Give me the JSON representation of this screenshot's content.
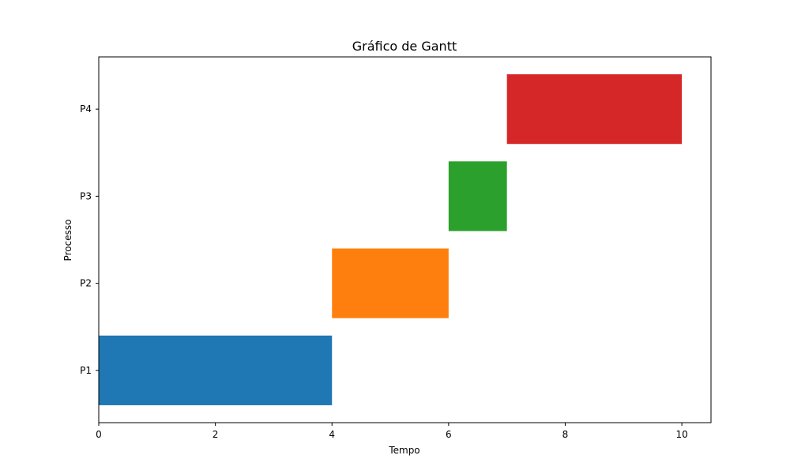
{
  "chart_data": {
    "type": "bar",
    "orientation": "horizontal",
    "title": "Gráfico de Gantt",
    "xlabel": "Tempo",
    "ylabel": "Processo",
    "xlim": [
      0,
      10.5
    ],
    "xticks": [
      0,
      2,
      4,
      6,
      8,
      10
    ],
    "categories": [
      "P1",
      "P2",
      "P3",
      "P4"
    ],
    "bars": [
      {
        "category": "P1",
        "start": 0,
        "end": 4,
        "color": "#1f77b4"
      },
      {
        "category": "P2",
        "start": 4,
        "end": 6,
        "color": "#ff7f0e"
      },
      {
        "category": "P3",
        "start": 6,
        "end": 7,
        "color": "#2ca02c"
      },
      {
        "category": "P4",
        "start": 7,
        "end": 10,
        "color": "#d62728"
      }
    ],
    "grid": false,
    "legend": null
  }
}
